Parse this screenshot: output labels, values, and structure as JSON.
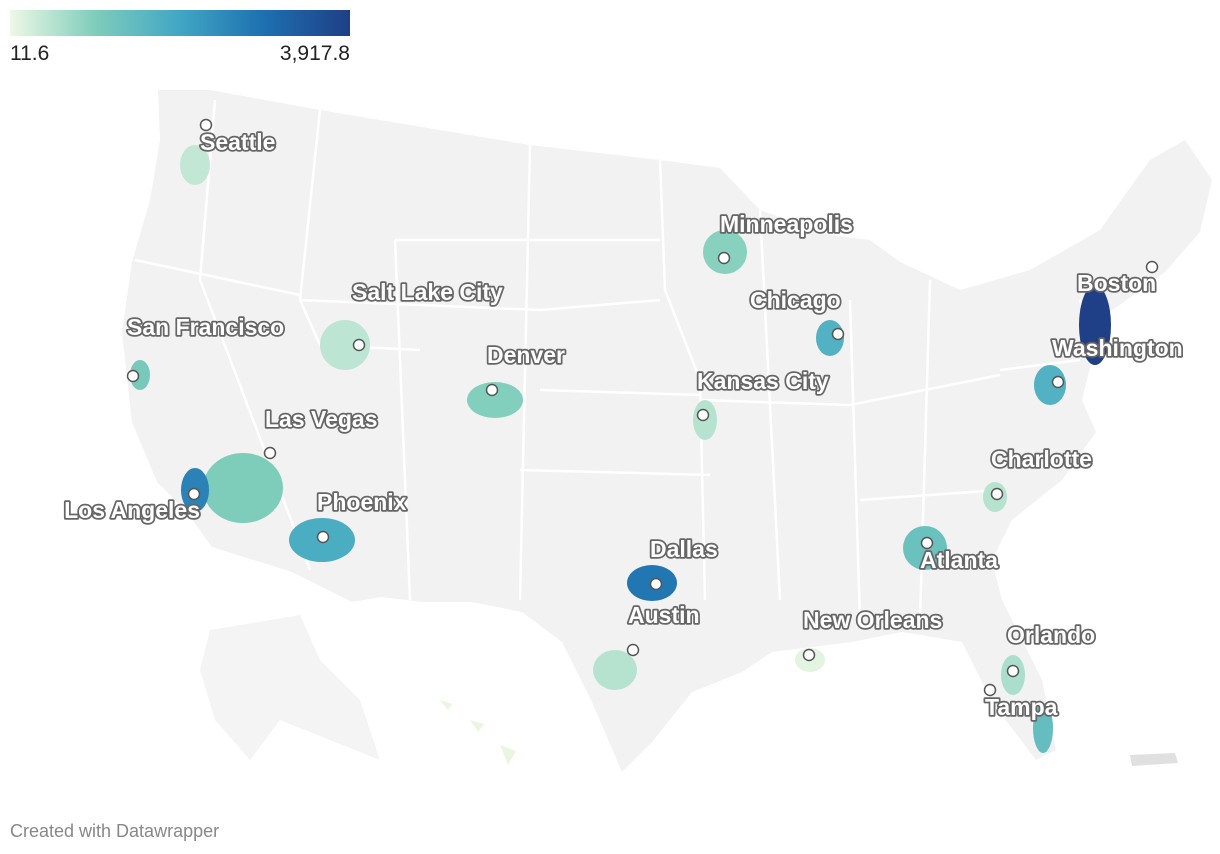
{
  "legend": {
    "ticks": [
      11.6,
      {
        "value": 3917.8,
        "label": "3,917.8"
      }
    ],
    "colors": [
      "#eef8e6",
      "#7fcdbb",
      "#41a6c4",
      "#1d6fb0",
      "#1f3f85"
    ]
  },
  "cities": [
    {
      "name": "Seattle",
      "value": 400
    },
    {
      "name": "Minneapolis",
      "value": 900
    },
    {
      "name": "Salt Lake City",
      "value": 450
    },
    {
      "name": "San Francisco",
      "value": 1100
    },
    {
      "name": "Denver",
      "value": 950
    },
    {
      "name": "Chicago",
      "value": 1700
    },
    {
      "name": "Boston",
      "value": 3900
    },
    {
      "name": "Washington",
      "value": 1700
    },
    {
      "name": "Kansas City",
      "value": 500
    },
    {
      "name": "Las Vegas",
      "value": 1000
    },
    {
      "name": "Charlotte",
      "value": 500
    },
    {
      "name": "Los Angeles",
      "value": 2600
    },
    {
      "name": "Phoenix",
      "value": 1800
    },
    {
      "name": "Dallas",
      "value": 2800
    },
    {
      "name": "Atlanta",
      "value": 1300
    },
    {
      "name": "Austin",
      "value": 500
    },
    {
      "name": "New Orleans",
      "value": 100
    },
    {
      "name": "Orlando",
      "value": 600
    },
    {
      "name": "Tampa",
      "value": 1400
    }
  ],
  "footer": "Created with Datawrapper"
}
